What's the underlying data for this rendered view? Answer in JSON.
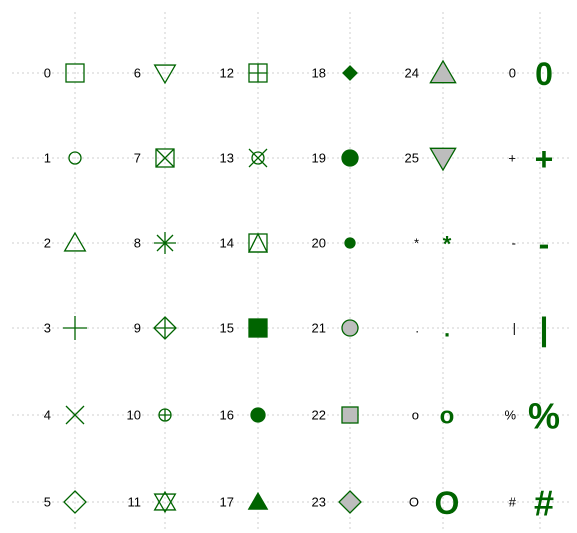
{
  "columns": [
    {
      "items": [
        {
          "label": "0"
        },
        {
          "label": "1"
        },
        {
          "label": "2"
        },
        {
          "label": "3"
        },
        {
          "label": "4"
        },
        {
          "label": "5"
        }
      ]
    },
    {
      "items": [
        {
          "label": "6"
        },
        {
          "label": "7"
        },
        {
          "label": "8"
        },
        {
          "label": "9"
        },
        {
          "label": "10"
        },
        {
          "label": "11"
        }
      ]
    },
    {
      "items": [
        {
          "label": "12"
        },
        {
          "label": "13"
        },
        {
          "label": "14"
        },
        {
          "label": "15"
        },
        {
          "label": "16"
        },
        {
          "label": "17"
        }
      ]
    },
    {
      "items": [
        {
          "label": "18"
        },
        {
          "label": "19"
        },
        {
          "label": "20"
        },
        {
          "label": "21"
        },
        {
          "label": "22"
        },
        {
          "label": "23"
        }
      ]
    },
    {
      "items": [
        {
          "label": "24"
        },
        {
          "label": "25"
        },
        {
          "label": "*",
          "glyph": "*"
        },
        {
          "label": ".",
          "glyph": "."
        },
        {
          "label": "o",
          "glyph": "o"
        },
        {
          "label": "O",
          "glyph": "O"
        }
      ]
    },
    {
      "items": [
        {
          "label": "0",
          "glyph": "0"
        },
        {
          "label": "+",
          "glyph": "+"
        },
        {
          "label": "-",
          "glyph": "-"
        },
        {
          "label": "|",
          "glyph": "|"
        },
        {
          "label": "%",
          "glyph": "%"
        },
        {
          "label": "#",
          "glyph": "#"
        }
      ]
    }
  ]
}
